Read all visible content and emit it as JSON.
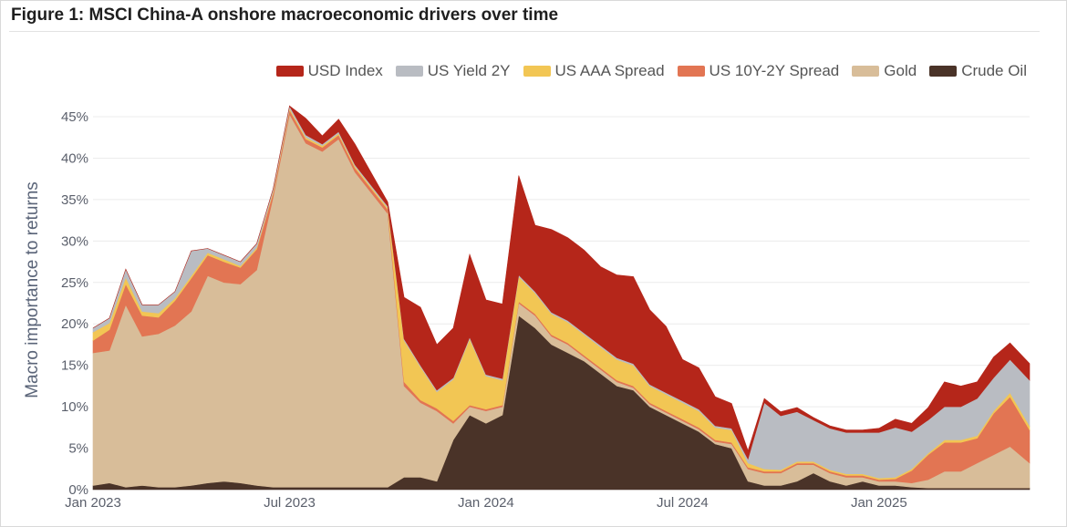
{
  "figure_title": "Figure 1: MSCI China-A onshore macroeconomic drivers over time",
  "chart_data": {
    "type": "area",
    "stacked": true,
    "title": "Figure 1: MSCI China-A onshore macroeconomic drivers over time",
    "xlabel": "",
    "ylabel": "Macro importance to returns",
    "ylim": [
      0,
      45
    ],
    "yticks": [
      0,
      5,
      10,
      15,
      20,
      25,
      30,
      35,
      40,
      45
    ],
    "ytick_labels": [
      "0%",
      "5%",
      "10%",
      "15%",
      "20%",
      "25%",
      "30%",
      "35%",
      "40%",
      "45%"
    ],
    "x_unit": "months since Jan 2023",
    "xlim": [
      0,
      28.6
    ],
    "xticks": [
      0,
      6,
      12,
      18,
      24
    ],
    "xtick_labels": [
      "Jan 2023",
      "Jul 2023",
      "Jan 2024",
      "Jul 2024",
      "Jan 2025"
    ],
    "legend_position": "top-right",
    "x": [
      0,
      0.5,
      1,
      1.5,
      2,
      2.5,
      3,
      3.5,
      4,
      4.5,
      5,
      5.5,
      6,
      6.5,
      7,
      7.5,
      8,
      8.5,
      9,
      9.5,
      10,
      10.5,
      11,
      11.5,
      12,
      12.5,
      13,
      13.5,
      14,
      14.5,
      15,
      15.5,
      16,
      16.5,
      17,
      17.5,
      18,
      18.5,
      19,
      19.5,
      20,
      20.5,
      21,
      21.5,
      22,
      22.5,
      23,
      23.5,
      24,
      24.5,
      25,
      25.5,
      26,
      26.5,
      27,
      27.5,
      28,
      28.6
    ],
    "series": [
      {
        "name": "Crude Oil",
        "color": "#4a3328",
        "values": [
          0.5,
          0.8,
          0.3,
          0.5,
          0.3,
          0.3,
          0.5,
          0.8,
          1.0,
          0.8,
          0.5,
          0.3,
          0.3,
          0.3,
          0.3,
          0.3,
          0.3,
          0.3,
          0.3,
          1.5,
          1.5,
          1.0,
          6.0,
          9.0,
          8.0,
          9.0,
          21.0,
          19.5,
          17.5,
          16.5,
          15.5,
          14.0,
          12.5,
          12.0,
          10.0,
          9.0,
          8.0,
          7.0,
          5.5,
          5.0,
          1.0,
          0.5,
          0.5,
          1.0,
          2.0,
          1.0,
          0.5,
          1.0,
          0.5,
          0.5,
          0.3,
          0.2,
          0.2,
          0.2,
          0.2,
          0.2,
          0.2,
          0.2
        ]
      },
      {
        "name": "Gold",
        "color": "#d8bd99",
        "values": [
          16.0,
          16.0,
          22.0,
          18.0,
          18.5,
          19.5,
          21.0,
          25.0,
          24.0,
          24.0,
          26.0,
          35.0,
          45.0,
          41.5,
          40.5,
          42.0,
          38.0,
          35.5,
          33.0,
          11.0,
          9.0,
          8.5,
          2.0,
          1.0,
          1.5,
          1.0,
          1.5,
          1.5,
          1.0,
          1.0,
          0.5,
          0.5,
          0.5,
          0.3,
          0.3,
          0.3,
          0.3,
          0.3,
          0.3,
          0.5,
          1.5,
          1.5,
          1.5,
          2.0,
          1.0,
          1.0,
          1.0,
          0.5,
          0.5,
          0.5,
          0.5,
          1.0,
          2.0,
          2.0,
          3.0,
          4.0,
          5.0,
          3.0
        ]
      },
      {
        "name": "US 10Y-2Y Spread",
        "color": "#e27553",
        "values": [
          1.5,
          2.5,
          2.5,
          2.5,
          2.0,
          3.0,
          4.0,
          2.5,
          2.5,
          2.0,
          2.5,
          0.5,
          0.5,
          0.5,
          0.5,
          0.5,
          0.5,
          0.5,
          0.5,
          0.5,
          0.3,
          0.3,
          0.3,
          0.2,
          0.2,
          0.2,
          0.2,
          0.2,
          0.2,
          0.2,
          0.2,
          0.2,
          0.2,
          0.2,
          0.2,
          0.2,
          0.2,
          0.2,
          0.2,
          0.2,
          0.2,
          0.2,
          0.2,
          0.2,
          0.2,
          0.2,
          0.2,
          0.2,
          0.2,
          0.3,
          1.5,
          3.0,
          3.5,
          3.5,
          3.0,
          5.0,
          6.0,
          4.0
        ]
      },
      {
        "name": "US AAA Spread",
        "color": "#f2c654",
        "values": [
          1.0,
          0.8,
          0.8,
          0.5,
          0.5,
          0.3,
          0.3,
          0.3,
          0.3,
          0.2,
          0.2,
          0.2,
          0.2,
          0.2,
          0.2,
          0.2,
          0.2,
          0.2,
          0.2,
          5.0,
          4.0,
          2.0,
          5.0,
          8.0,
          4.0,
          3.0,
          3.0,
          2.5,
          2.5,
          2.5,
          2.5,
          2.5,
          2.5,
          2.5,
          2.0,
          2.0,
          2.0,
          2.0,
          1.5,
          1.5,
          0.5,
          0.3,
          0.2,
          0.2,
          0.2,
          0.2,
          0.2,
          0.2,
          0.2,
          0.2,
          0.2,
          0.2,
          0.3,
          0.3,
          0.3,
          0.3,
          0.5,
          0.5
        ]
      },
      {
        "name": "US Yield 2Y",
        "color": "#b9bcc2",
        "values": [
          0.5,
          0.6,
          1.0,
          0.8,
          1.0,
          0.8,
          3.0,
          0.5,
          0.5,
          0.5,
          0.5,
          0.3,
          0.3,
          0.3,
          0.2,
          0.2,
          0.2,
          0.2,
          0.2,
          0.2,
          0.2,
          0.2,
          0.2,
          0.2,
          0.2,
          0.2,
          0.2,
          0.2,
          0.2,
          0.2,
          0.2,
          0.2,
          0.2,
          0.2,
          0.2,
          0.2,
          0.2,
          0.2,
          0.2,
          0.2,
          0.5,
          8.0,
          6.5,
          6.0,
          5.0,
          5.0,
          5.0,
          5.0,
          5.5,
          6.0,
          4.5,
          4.0,
          4.0,
          4.0,
          4.5,
          4.0,
          4.0,
          5.5
        ]
      },
      {
        "name": "USD Index",
        "color": "#b5261a",
        "values": [
          0.0,
          0.0,
          0.0,
          0.0,
          0.0,
          0.0,
          0.0,
          0.0,
          0.0,
          0.0,
          0.0,
          0.0,
          0.0,
          2.0,
          1.0,
          1.5,
          2.5,
          1.5,
          0.5,
          5.0,
          7.0,
          5.5,
          6.0,
          10.0,
          9.0,
          9.0,
          12.0,
          8.0,
          10.0,
          10.0,
          10.0,
          9.5,
          10.0,
          10.5,
          9.0,
          8.0,
          5.0,
          5.0,
          3.5,
          3.0,
          1.0,
          0.5,
          0.5,
          0.5,
          0.3,
          0.3,
          0.3,
          0.3,
          0.5,
          1.0,
          1.0,
          1.5,
          3.0,
          2.5,
          2.0,
          2.5,
          2.0,
          2.0
        ]
      }
    ],
    "legend_order": [
      "USD Index",
      "US Yield 2Y",
      "US AAA Spread",
      "US 10Y-2Y Spread",
      "Gold",
      "Crude Oil"
    ]
  }
}
